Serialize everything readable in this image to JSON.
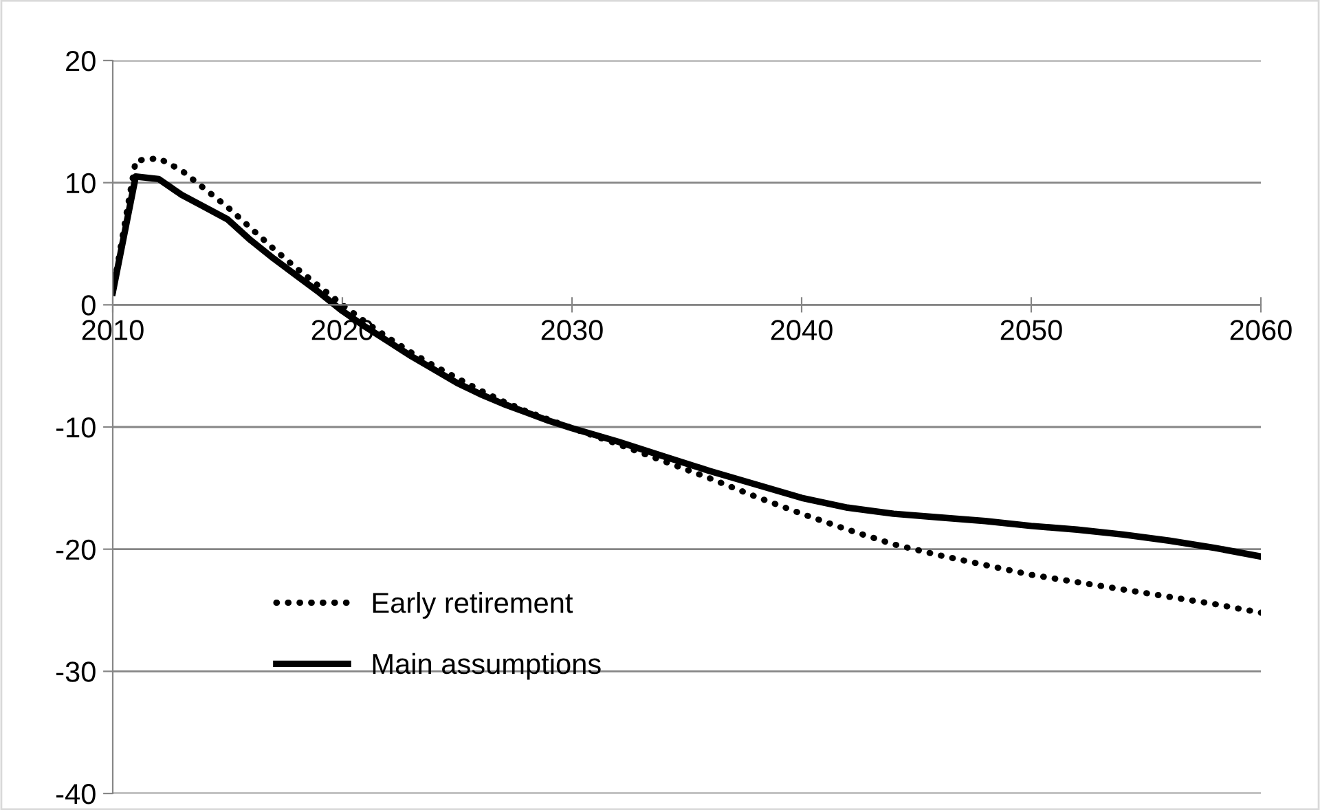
{
  "chart_data": {
    "type": "line",
    "xlim": [
      2010,
      2060
    ],
    "xticks": [
      2010,
      2020,
      2030,
      2040,
      2050,
      2060
    ],
    "ylim": [
      -40,
      20
    ],
    "yticks": [
      -40,
      -30,
      -20,
      -10,
      0,
      10,
      20
    ],
    "grid": "y",
    "legend": "bottom left",
    "x": [
      2010,
      2011,
      2012,
      2013,
      2014,
      2015,
      2016,
      2017,
      2018,
      2019,
      2020,
      2021,
      2022,
      2023,
      2024,
      2025,
      2026,
      2027,
      2028,
      2029,
      2030,
      2032,
      2034,
      2036,
      2038,
      2040,
      2042,
      2044,
      2046,
      2048,
      2050,
      2052,
      2054,
      2056,
      2058,
      2060
    ],
    "series": [
      {
        "name": "Early retirement",
        "color": "#000000",
        "line_style": "dotted",
        "values": [
          1,
          11.8,
          12,
          11,
          9.5,
          8,
          6.3,
          4.6,
          3,
          1.5,
          0,
          -1.4,
          -2.7,
          -3.9,
          -5,
          -6,
          -7,
          -7.9,
          -8.7,
          -9.4,
          -10.1,
          -11.4,
          -12.8,
          -14.2,
          -15.7,
          -17.1,
          -18.4,
          -19.6,
          -20.5,
          -21.3,
          -22.1,
          -22.7,
          -23.3,
          -23.9,
          -24.5,
          -25.2
        ]
      },
      {
        "name": "Main assumptions",
        "color": "#000000",
        "line_style": "solid",
        "values": [
          1,
          10.5,
          10.3,
          9,
          8,
          7,
          5.3,
          3.8,
          2.4,
          1,
          -0.5,
          -1.8,
          -3,
          -4.2,
          -5.3,
          -6.4,
          -7.3,
          -8.1,
          -8.8,
          -9.5,
          -10.1,
          -11.2,
          -12.4,
          -13.6,
          -14.7,
          -15.8,
          -16.6,
          -17.1,
          -17.4,
          -17.7,
          -18.1,
          -18.4,
          -18.8,
          -19.3,
          -19.9,
          -20.6
        ]
      }
    ]
  }
}
